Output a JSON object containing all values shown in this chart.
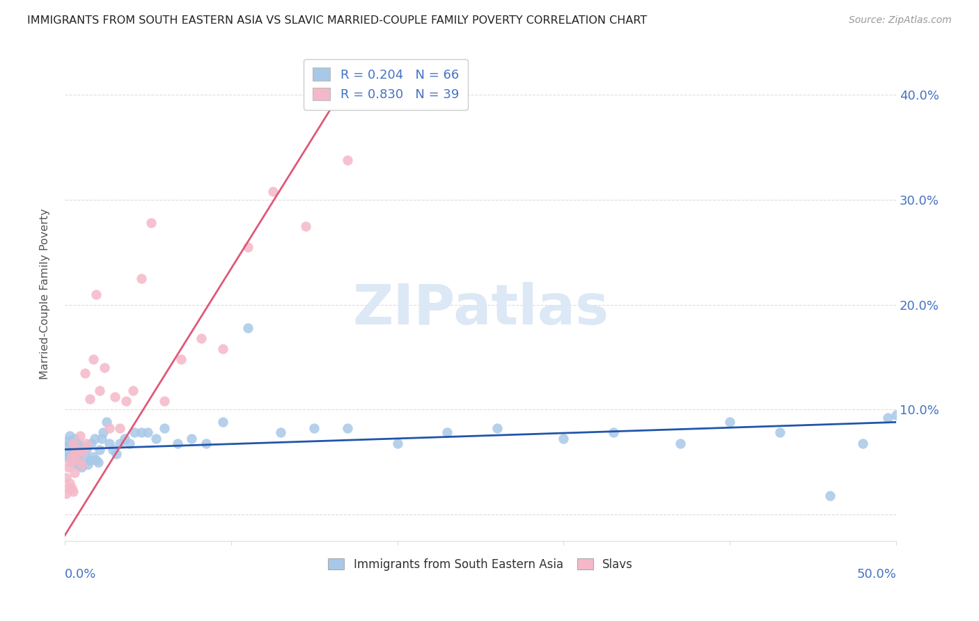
{
  "title": "IMMIGRANTS FROM SOUTH EASTERN ASIA VS SLAVIC MARRIED-COUPLE FAMILY POVERTY CORRELATION CHART",
  "source": "Source: ZipAtlas.com",
  "ylabel": "Married-Couple Family Poverty",
  "yticks_labels": [
    "",
    "10.0%",
    "20.0%",
    "30.0%",
    "40.0%"
  ],
  "ytick_vals": [
    0.0,
    0.1,
    0.2,
    0.3,
    0.4
  ],
  "xlim": [
    0.0,
    0.5
  ],
  "ylim": [
    -0.025,
    0.445
  ],
  "legend1_label": "R = 0.204   N = 66",
  "legend2_label": "R = 0.830   N = 39",
  "legend1_color": "#a8c8e8",
  "legend2_color": "#f5b8c8",
  "line1_color": "#2255aa",
  "line2_color": "#e05878",
  "scatter1_color": "#a8c8e8",
  "scatter2_color": "#f5b8c8",
  "watermark": "ZIPatlas",
  "watermark_color": "#dce8f5",
  "title_color": "#222222",
  "source_color": "#999999",
  "axis_label_color": "#4472c4",
  "ylabel_color": "#555555",
  "grid_color": "#dddddd",
  "series1_x": [
    0.001,
    0.001,
    0.002,
    0.002,
    0.003,
    0.003,
    0.003,
    0.004,
    0.004,
    0.005,
    0.005,
    0.006,
    0.006,
    0.007,
    0.007,
    0.008,
    0.008,
    0.009,
    0.009,
    0.01,
    0.01,
    0.011,
    0.012,
    0.013,
    0.014,
    0.015,
    0.016,
    0.017,
    0.018,
    0.019,
    0.02,
    0.021,
    0.022,
    0.023,
    0.025,
    0.027,
    0.029,
    0.031,
    0.033,
    0.036,
    0.039,
    0.042,
    0.046,
    0.05,
    0.055,
    0.06,
    0.068,
    0.076,
    0.085,
    0.095,
    0.11,
    0.13,
    0.15,
    0.17,
    0.2,
    0.23,
    0.26,
    0.3,
    0.33,
    0.37,
    0.4,
    0.43,
    0.46,
    0.48,
    0.495,
    0.5
  ],
  "series1_y": [
    0.055,
    0.065,
    0.06,
    0.07,
    0.055,
    0.065,
    0.075,
    0.058,
    0.068,
    0.052,
    0.063,
    0.058,
    0.072,
    0.048,
    0.062,
    0.055,
    0.068,
    0.048,
    0.062,
    0.045,
    0.06,
    0.065,
    0.055,
    0.062,
    0.048,
    0.052,
    0.068,
    0.055,
    0.072,
    0.052,
    0.05,
    0.062,
    0.072,
    0.078,
    0.088,
    0.068,
    0.062,
    0.058,
    0.068,
    0.072,
    0.068,
    0.078,
    0.078,
    0.078,
    0.072,
    0.082,
    0.068,
    0.072,
    0.068,
    0.088,
    0.178,
    0.078,
    0.082,
    0.082,
    0.068,
    0.078,
    0.082,
    0.072,
    0.078,
    0.068,
    0.088,
    0.078,
    0.018,
    0.068,
    0.092,
    0.095
  ],
  "series2_x": [
    0.001,
    0.001,
    0.002,
    0.002,
    0.003,
    0.003,
    0.004,
    0.004,
    0.005,
    0.005,
    0.006,
    0.006,
    0.007,
    0.008,
    0.009,
    0.01,
    0.011,
    0.012,
    0.013,
    0.015,
    0.017,
    0.019,
    0.021,
    0.024,
    0.027,
    0.03,
    0.033,
    0.037,
    0.041,
    0.046,
    0.052,
    0.06,
    0.07,
    0.082,
    0.095,
    0.11,
    0.125,
    0.145,
    0.17
  ],
  "series2_y": [
    0.02,
    0.035,
    0.025,
    0.045,
    0.03,
    0.05,
    0.025,
    0.055,
    0.022,
    0.068,
    0.04,
    0.058,
    0.052,
    0.062,
    0.075,
    0.048,
    0.06,
    0.135,
    0.068,
    0.11,
    0.148,
    0.21,
    0.118,
    0.14,
    0.082,
    0.112,
    0.082,
    0.108,
    0.118,
    0.225,
    0.278,
    0.108,
    0.148,
    0.168,
    0.158,
    0.255,
    0.308,
    0.275,
    0.338
  ],
  "line1_x": [
    0.0,
    0.5
  ],
  "line1_y": [
    0.062,
    0.088
  ],
  "line2_x": [
    0.0,
    0.175
  ],
  "line2_y": [
    -0.02,
    0.425
  ]
}
